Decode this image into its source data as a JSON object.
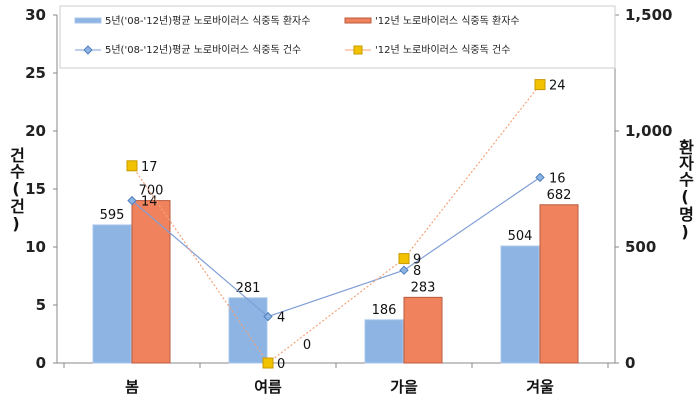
{
  "chart_data": {
    "type": "bar+line",
    "categories": [
      "봄",
      "여름",
      "가을",
      "겨울"
    ],
    "ylabel_left": "건수(건)",
    "ylabel_right": "환자수(명)",
    "ylim_left": [
      0,
      30
    ],
    "ylim_right": [
      0,
      1500
    ],
    "left_ticks": [
      "0",
      "5",
      "10",
      "15",
      "20",
      "25",
      "30"
    ],
    "right_ticks": [
      "0",
      "500",
      "1,000",
      "1,500"
    ],
    "grid": false,
    "legend_placement": "top",
    "series": [
      {
        "name": "5년('08-'12년)평균 노로바이러스 식중독 환자수",
        "kind": "bar",
        "axis": "right",
        "color": "#8DB4E2",
        "values": [
          595,
          281,
          186,
          504
        ],
        "labels": [
          "595",
          "281",
          "186",
          "504"
        ]
      },
      {
        "name": "'12년 노로바이러스 식중독 환자수",
        "kind": "bar",
        "axis": "right",
        "color": "#F0835E",
        "values": [
          700,
          0,
          283,
          682
        ],
        "labels": [
          "700",
          "0",
          "283",
          "682"
        ]
      },
      {
        "name": "5년('08-'12년)평균 노로바이러스 식중독 건수",
        "kind": "line",
        "axis": "left",
        "color": "#7F9ED6",
        "marker": "diamond",
        "values": [
          14,
          4,
          8,
          16
        ],
        "labels": [
          "14",
          "4",
          "8",
          "16"
        ]
      },
      {
        "name": "'12년 노로바이러스 식중독 건수",
        "kind": "line",
        "axis": "left",
        "color": "#F4A37A",
        "marker": "square",
        "marker_color": "#F2C200",
        "values": [
          17,
          0,
          9,
          24
        ],
        "labels": [
          "17",
          "0",
          "9",
          "24"
        ]
      }
    ]
  }
}
